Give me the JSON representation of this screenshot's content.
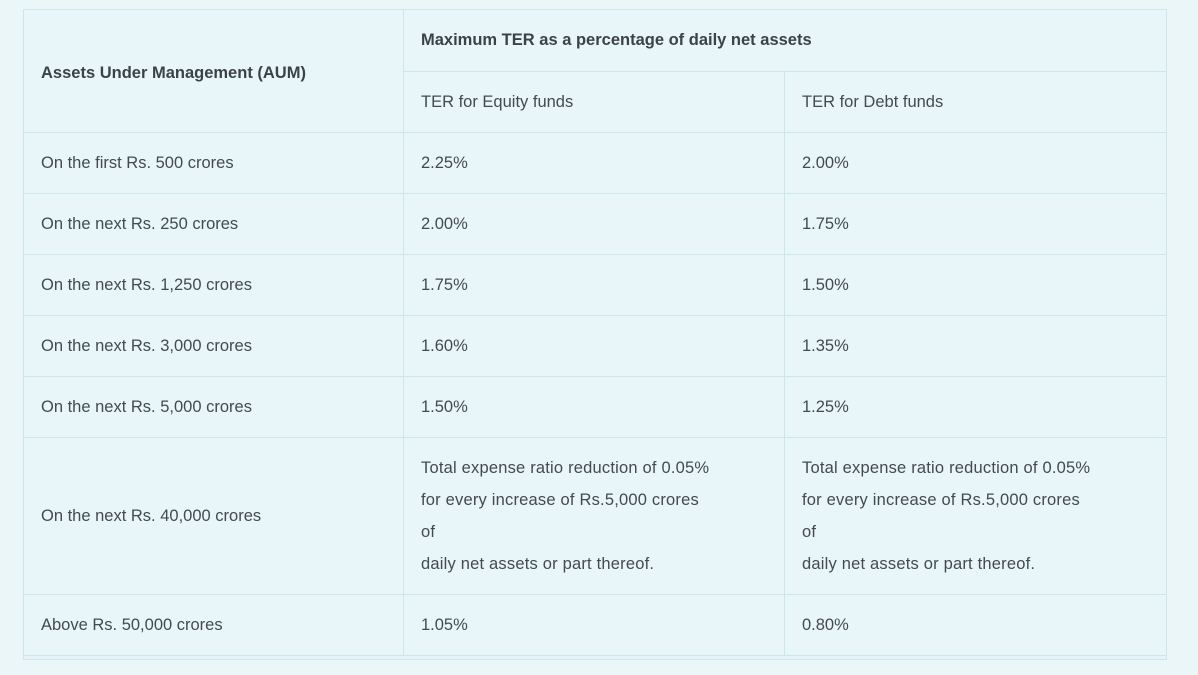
{
  "table": {
    "header": {
      "aum": "Assets Under Management (AUM)",
      "max_ter": "Maximum TER as a percentage of daily net assets",
      "equity": "TER for Equity funds",
      "debt": "TER for Debt funds"
    },
    "rows": [
      {
        "aum": "On the first Rs. 500 crores",
        "equity": "2.25%",
        "debt": "2.00%"
      },
      {
        "aum": "On the next Rs. 250 crores",
        "equity": "2.00%",
        "debt": "1.75%"
      },
      {
        "aum": "On the next Rs. 1,250 crores",
        "equity": "1.75%",
        "debt": "1.50%"
      },
      {
        "aum": "On the next Rs. 3,000 crores",
        "equity": "1.60%",
        "debt": "1.35%"
      },
      {
        "aum": "On the next Rs. 5,000 crores",
        "equity": "1.50%",
        "debt": "1.25%"
      },
      {
        "aum": "On the next Rs. 40,000 crores",
        "equity_lines": [
          "Total expense ratio reduction of 0.05%",
          "for every increase of Rs.5,000 crores",
          "of",
          "daily net assets or part thereof."
        ],
        "debt_lines": [
          "Total expense ratio reduction of 0.05%",
          "for every increase of Rs.5,000 crores",
          "of",
          "daily net assets or part thereof."
        ]
      },
      {
        "aum": "Above Rs. 50,000 crores",
        "equity": "1.05%",
        "debt": "0.80%"
      }
    ]
  }
}
